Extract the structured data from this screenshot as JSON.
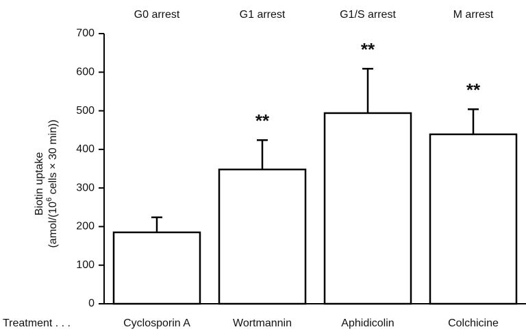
{
  "chart_data": {
    "type": "bar",
    "ylabel": [
      "Biotin uptake",
      "(amol/(10",
      "6",
      " cells × 30 min))"
    ],
    "x_prefix": "Treatment . . .",
    "groups": [
      "G0 arrest",
      "G1 arrest",
      "G1/S arrest",
      "M arrest"
    ],
    "categories": [
      "Cyclosporin A",
      "Wortmannin",
      "Aphidicolin",
      "Colchicine"
    ],
    "values": [
      185,
      348,
      494,
      439
    ],
    "errors": [
      39,
      76,
      115,
      65
    ],
    "annotations": [
      null,
      "**",
      "**",
      "**"
    ],
    "color": "#ffffff",
    "ylim": [
      0,
      700
    ],
    "yticks": [
      0,
      100,
      200,
      300,
      400,
      500,
      600,
      700
    ]
  }
}
